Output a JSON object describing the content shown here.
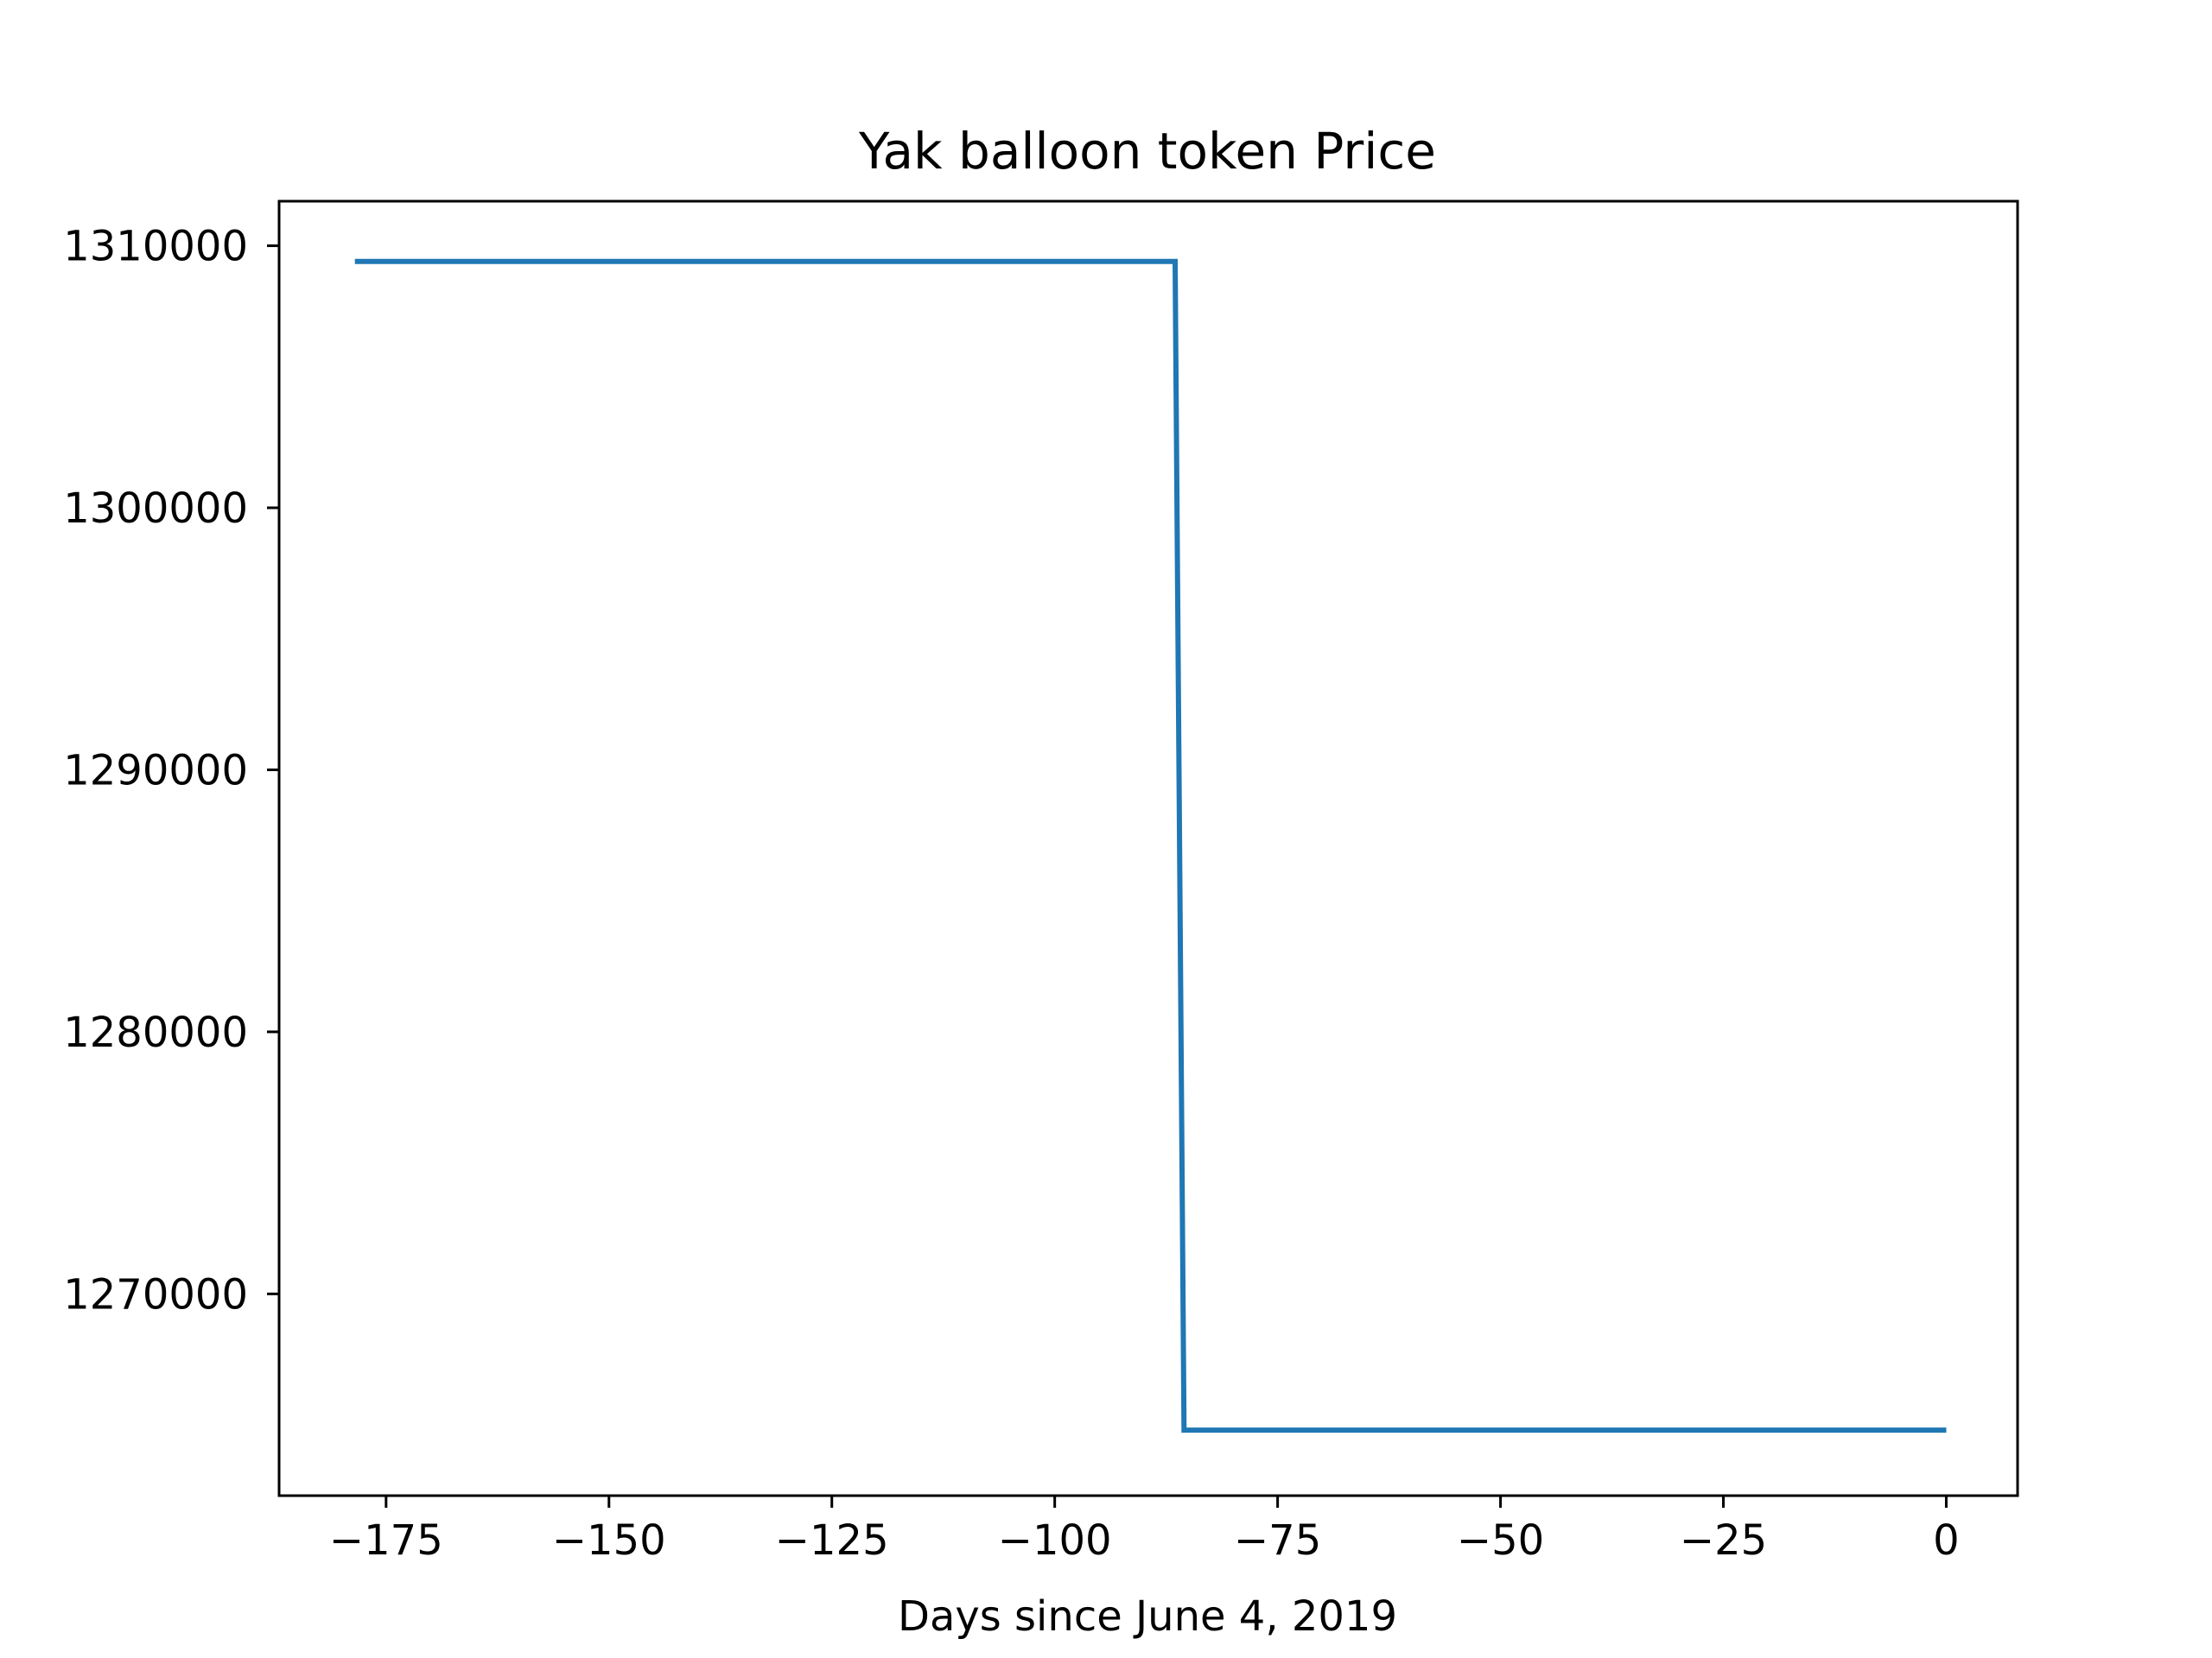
{
  "chart_data": {
    "type": "line",
    "title": "Yak balloon token Price",
    "xlabel": "Days since June 4, 2019",
    "ylabel": "",
    "xlim": [
      -187,
      8
    ],
    "ylim": [
      1262300,
      1311700
    ],
    "xticks": [
      -175,
      -150,
      -125,
      -100,
      -75,
      -50,
      -25,
      0
    ],
    "xtick_labels": [
      "−175",
      "−150",
      "−125",
      "−100",
      "−75",
      "−50",
      "−25",
      "0"
    ],
    "yticks": [
      1270000,
      1280000,
      1290000,
      1300000,
      1310000
    ],
    "ytick_labels": [
      "1270000",
      "1280000",
      "1290000",
      "1300000",
      "1310000"
    ],
    "grid": false,
    "series": [
      {
        "color": "#1f77b4",
        "x": [
          -178.5,
          -86.5,
          -85.5,
          0
        ],
        "y": [
          1309400,
          1309400,
          1264800,
          1264800
        ]
      }
    ]
  }
}
